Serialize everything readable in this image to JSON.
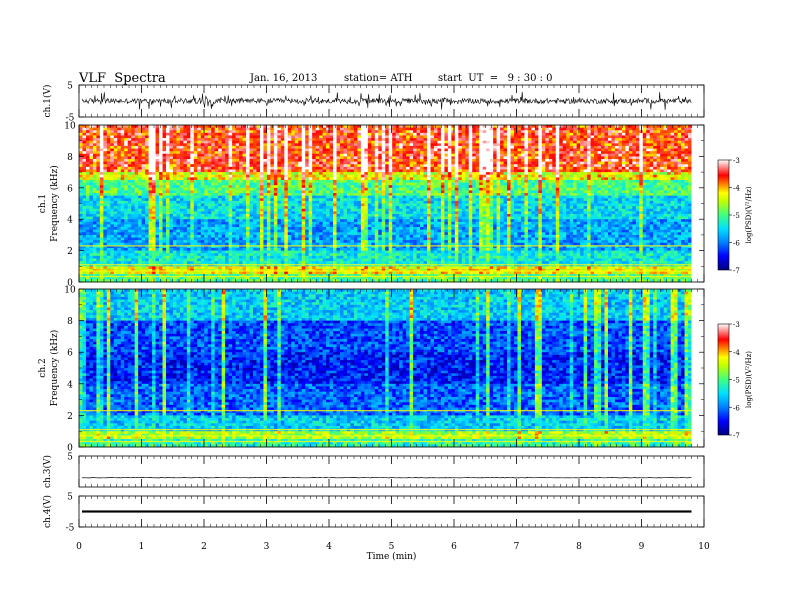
{
  "header": {
    "title": "VLF  Spectra",
    "date": "Jan. 16, 2013",
    "station": "station= ATH",
    "start": "start  UT  =   9 : 30 : 0"
  },
  "chart_data": {
    "type": "heatmap",
    "xlabel": "Time  (min)",
    "xlim": [
      0,
      10
    ],
    "xticks": [
      0,
      1,
      2,
      3,
      4,
      5,
      6,
      7,
      8,
      9,
      10
    ],
    "data_end_min": 9.8,
    "panels": [
      {
        "id": "ch1-waveform",
        "type": "line",
        "ylabel": "ch.1(V)",
        "ylim": [
          -5,
          5
        ],
        "yticks": [
          5,
          -5
        ],
        "color": "#000000",
        "note": "noisy waveform, amplitude approx +/-1.5 V"
      },
      {
        "id": "ch1-spectrogram",
        "type": "heatmap",
        "ylabel_channel": "ch.1",
        "ylabel": "Frequency  (kHz)",
        "ylim": [
          0,
          10
        ],
        "yticks": [
          0,
          2,
          4,
          6,
          8,
          10
        ],
        "colorbar": {
          "label": "log(PSD)(V²/Hz)",
          "range": [
            -7,
            -3
          ],
          "ticks": [
            -3,
            -4,
            -5,
            -6,
            -7
          ]
        },
        "band_levels": [
          {
            "f_low": 0.0,
            "f_high": 0.5,
            "log_psd": -5.0
          },
          {
            "f_low": 0.5,
            "f_high": 1.0,
            "log_psd": -4.3
          },
          {
            "f_low": 1.0,
            "f_high": 2.0,
            "log_psd": -5.4
          },
          {
            "f_low": 2.0,
            "f_high": 4.0,
            "log_psd": -5.8
          },
          {
            "f_low": 4.0,
            "f_high": 5.5,
            "log_psd": -5.5
          },
          {
            "f_low": 5.5,
            "f_high": 6.5,
            "log_psd": -5.0
          },
          {
            "f_low": 6.5,
            "f_high": 7.0,
            "log_psd": -4.3
          },
          {
            "f_low": 7.0,
            "f_high": 10.0,
            "log_psd": -3.6
          }
        ]
      },
      {
        "id": "ch2-spectrogram",
        "type": "heatmap",
        "ylabel_channel": "ch.2",
        "ylabel": "Frequency  (kHz)",
        "ylim": [
          0,
          10
        ],
        "yticks": [
          0,
          2,
          4,
          6,
          8,
          10
        ],
        "colorbar": {
          "label": "log(PSD)(V²/Hz)",
          "range": [
            -7,
            -3
          ],
          "ticks": [
            -3,
            -4,
            -5,
            -6,
            -7
          ]
        },
        "band_levels": [
          {
            "f_low": 0.0,
            "f_high": 0.5,
            "log_psd": -5.2
          },
          {
            "f_low": 0.5,
            "f_high": 1.0,
            "log_psd": -4.6
          },
          {
            "f_low": 1.0,
            "f_high": 2.0,
            "log_psd": -5.6
          },
          {
            "f_low": 2.0,
            "f_high": 4.0,
            "log_psd": -6.1
          },
          {
            "f_low": 4.0,
            "f_high": 6.0,
            "log_psd": -6.4
          },
          {
            "f_low": 6.0,
            "f_high": 8.0,
            "log_psd": -6.2
          },
          {
            "f_low": 8.0,
            "f_high": 10.0,
            "log_psd": -5.6
          }
        ]
      },
      {
        "id": "ch3-waveform",
        "type": "line",
        "ylabel": "ch.3(V)",
        "ylim": [
          -5,
          5
        ],
        "yticks": [
          5
        ],
        "color": "#000000",
        "note": "flat signal near -2 V"
      },
      {
        "id": "ch4-waveform",
        "type": "line",
        "ylabel": "ch.4(V)",
        "ylim": [
          -5,
          5
        ],
        "yticks": [
          5,
          -5
        ],
        "color": "#000000",
        "note": "thick flat signal near 0 V"
      }
    ]
  }
}
